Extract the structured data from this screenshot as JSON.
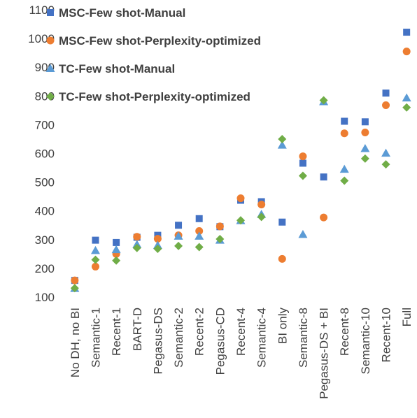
{
  "chart_data": {
    "type": "scatter",
    "title": "",
    "xlabel": "",
    "ylabel": "",
    "ylim": [
      100,
      1100
    ],
    "yticks": [
      100,
      200,
      300,
      400,
      500,
      600,
      700,
      800,
      900,
      1000,
      1100
    ],
    "grid": false,
    "legend_position": "top-left",
    "categories": [
      "No DH, no BI",
      "Semantic-1",
      "Recent-1",
      "BART-D",
      "Pegasus-DS",
      "Semantic-2",
      "Recent-2",
      "Pegasus-CD",
      "Recent-4",
      "Semantic-4",
      "BI only",
      "Semantic-8",
      "Pegasus-DS + BI",
      "Recent-8",
      "Semantic-10",
      "Recent-10",
      "Full"
    ],
    "series": [
      {
        "name": "MSC-Few shot-Manual",
        "marker": "square",
        "color": "#4472C4",
        "values": [
          158,
          298,
          290,
          308,
          315,
          350,
          373,
          345,
          437,
          432,
          361,
          566,
          518,
          712,
          710,
          810,
          1022
        ]
      },
      {
        "name": "MSC-Few shot-Perplexity-optimized",
        "marker": "circle",
        "color": "#ED7D31",
        "values": [
          158,
          206,
          250,
          310,
          303,
          315,
          330,
          346,
          444,
          422,
          233,
          590,
          377,
          670,
          673,
          768,
          955
        ]
      },
      {
        "name": "TC-Few shot-Manual",
        "marker": "triangle",
        "color": "#5B9BD5",
        "values": [
          130,
          262,
          265,
          283,
          280,
          312,
          312,
          298,
          366,
          388,
          629,
          318,
          780,
          545,
          617,
          601,
          793
        ]
      },
      {
        "name": "TC-Few shot-Perplexity-optimized",
        "marker": "diamond",
        "color": "#70AD47",
        "values": [
          131,
          230,
          227,
          271,
          268,
          278,
          274,
          302,
          367,
          379,
          650,
          522,
          785,
          505,
          582,
          562,
          760
        ]
      }
    ]
  }
}
